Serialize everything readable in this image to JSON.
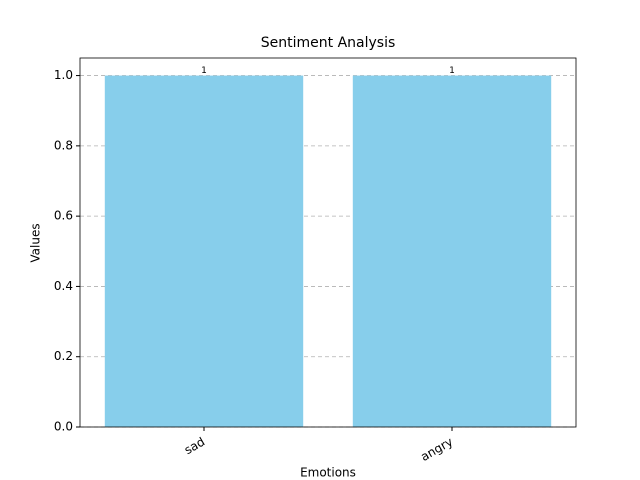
{
  "chart_data": {
    "type": "bar",
    "title": "Sentiment Analysis",
    "x_label": "Emotions",
    "y_label": "Values",
    "categories": [
      "sad",
      "angry"
    ],
    "values": [
      1,
      1
    ],
    "color": "#87ceeb",
    "ylim": [
      0,
      1.05
    ],
    "yticks": [
      {
        "value": 0,
        "label": "0.0"
      },
      {
        "value": 0.2,
        "label": "0.2"
      },
      {
        "value": 0.4,
        "label": "0.4"
      },
      {
        "value": 0.6,
        "label": "0.6"
      },
      {
        "value": 0.8,
        "label": "0.8"
      },
      {
        "value": 1,
        "label": "1.0"
      }
    ],
    "grid": true
  }
}
